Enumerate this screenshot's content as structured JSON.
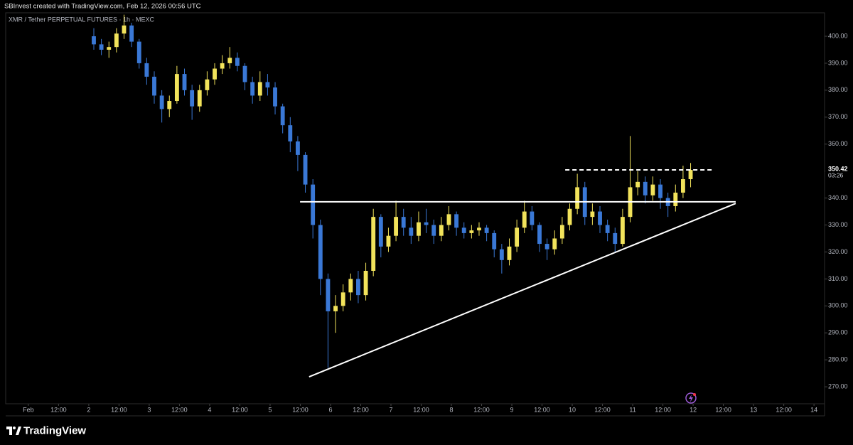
{
  "header": "SBInvest created with TradingView.com, Feb 12, 2026 00:56 UTC",
  "chart_data": {
    "type": "candlestick",
    "title": "XMR / Tether PERPETUAL FUTURES · 1h · MEXC",
    "up_color": "#f2e35b",
    "down_color": "#3a78d6",
    "x": [
      26,
      29,
      32,
      35,
      38,
      41,
      44,
      47,
      50,
      53,
      56,
      59,
      62,
      65,
      68,
      71,
      74,
      77,
      80,
      83,
      86,
      89,
      92,
      95,
      98,
      101,
      104,
      107,
      110,
      113,
      116,
      119,
      122,
      125,
      128,
      131,
      134,
      137,
      140,
      143,
      146,
      149,
      152,
      155,
      158,
      161,
      164,
      167,
      170,
      173,
      176,
      179,
      182,
      185,
      188,
      191,
      194,
      197,
      200,
      203,
      206,
      209,
      212,
      215,
      218,
      221,
      224,
      227,
      230,
      233,
      236,
      239,
      242,
      245,
      248,
      251,
      254,
      257,
      260,
      263
    ],
    "open": [
      400,
      397,
      395,
      396,
      401,
      404,
      398,
      390,
      385,
      378,
      373,
      376,
      386,
      380,
      374,
      380,
      384,
      388,
      390,
      392,
      389,
      383,
      378,
      383,
      381,
      374,
      367,
      361,
      356,
      345,
      330,
      310,
      298,
      300,
      305,
      310,
      304,
      313,
      333,
      322,
      326,
      333,
      329,
      326,
      331,
      330,
      326,
      330,
      334,
      329,
      327,
      328,
      329,
      327,
      321,
      317,
      322,
      329,
      335,
      330,
      323,
      321,
      325,
      330,
      336,
      344,
      333,
      335,
      330,
      327,
      323,
      333,
      344,
      346,
      341,
      345,
      340,
      337,
      342,
      347
    ],
    "high": [
      403,
      399,
      398,
      403,
      408,
      405,
      399,
      392,
      387,
      380,
      378,
      389,
      388,
      382,
      382,
      387,
      390,
      393,
      396,
      394,
      390,
      385,
      387,
      386,
      383,
      375,
      370,
      363,
      357,
      347,
      332,
      312,
      304,
      308,
      312,
      313,
      316,
      336,
      334,
      329,
      339,
      336,
      333,
      335,
      336,
      332,
      333,
      337,
      335,
      331,
      330,
      331,
      330,
      328,
      323,
      325,
      332,
      339,
      337,
      331,
      325,
      328,
      333,
      338,
      349,
      346,
      338,
      337,
      332,
      329,
      336,
      363,
      350,
      348,
      348,
      347,
      342,
      345,
      352,
      353
    ],
    "low": [
      395,
      393,
      392,
      394,
      399,
      396,
      388,
      382,
      375,
      368,
      370,
      375,
      378,
      369,
      372,
      378,
      382,
      386,
      388,
      387,
      380,
      375,
      376,
      378,
      371,
      364,
      357,
      350,
      342,
      325,
      304,
      277,
      290,
      298,
      302,
      301,
      302,
      311,
      318,
      320,
      324,
      326,
      323,
      324,
      327,
      323,
      324,
      328,
      326,
      325,
      325,
      326,
      324,
      318,
      312,
      315,
      320,
      327,
      328,
      320,
      317,
      319,
      323,
      328,
      334,
      330,
      330,
      327,
      324,
      320,
      322,
      331,
      341,
      338,
      339,
      336,
      333,
      335,
      340,
      344
    ],
    "close": [
      397,
      395,
      396,
      401,
      404,
      398,
      390,
      385,
      378,
      373,
      376,
      386,
      380,
      374,
      380,
      384,
      388,
      390,
      392,
      389,
      383,
      378,
      383,
      381,
      374,
      367,
      361,
      356,
      345,
      330,
      310,
      298,
      300,
      305,
      310,
      304,
      313,
      333,
      322,
      326,
      333,
      329,
      326,
      331,
      330,
      326,
      330,
      334,
      329,
      327,
      328,
      329,
      327,
      321,
      317,
      322,
      329,
      335,
      330,
      323,
      321,
      325,
      330,
      336,
      344,
      333,
      335,
      330,
      327,
      323,
      333,
      344,
      346,
      341,
      345,
      340,
      337,
      342,
      347,
      350.42
    ],
    "xlim": [
      -9,
      316.2
    ],
    "ylim": [
      263.7,
      408.7
    ],
    "xticks": [
      {
        "value": 0,
        "label": "Feb"
      },
      {
        "value": 12,
        "label": "12:00"
      },
      {
        "value": 24,
        "label": "2"
      },
      {
        "value": 36,
        "label": "12:00"
      },
      {
        "value": 48,
        "label": "3"
      },
      {
        "value": 60,
        "label": "12:00"
      },
      {
        "value": 72,
        "label": "4"
      },
      {
        "value": 84,
        "label": "12:00"
      },
      {
        "value": 96,
        "label": "5"
      },
      {
        "value": 108,
        "label": "12:00"
      },
      {
        "value": 120,
        "label": "6"
      },
      {
        "value": 132,
        "label": "12:00"
      },
      {
        "value": 144,
        "label": "7"
      },
      {
        "value": 156,
        "label": "12:00"
      },
      {
        "value": 168,
        "label": "8"
      },
      {
        "value": 180,
        "label": "12:00"
      },
      {
        "value": 192,
        "label": "9"
      },
      {
        "value": 204,
        "label": "12:00"
      },
      {
        "value": 216,
        "label": "10"
      },
      {
        "value": 228,
        "label": "12:00"
      },
      {
        "value": 240,
        "label": "11"
      },
      {
        "value": 252,
        "label": "12:00"
      },
      {
        "value": 264,
        "label": "12"
      },
      {
        "value": 276,
        "label": "12:00"
      },
      {
        "value": 288,
        "label": "13"
      },
      {
        "value": 300,
        "label": "12:00"
      },
      {
        "value": 312,
        "label": "14"
      }
    ],
    "yticks": [
      {
        "value": 270,
        "label": "270.00"
      },
      {
        "value": 280,
        "label": "280.00"
      },
      {
        "value": 290,
        "label": "290.00"
      },
      {
        "value": 300,
        "label": "300.00"
      },
      {
        "value": 310,
        "label": "310.00"
      },
      {
        "value": 320,
        "label": "320.00"
      },
      {
        "value": 330,
        "label": "330.00"
      },
      {
        "value": 340,
        "label": "340.00"
      },
      {
        "value": 350,
        "label": "350.00"
      },
      {
        "value": 360,
        "label": "360.00"
      },
      {
        "value": 370,
        "label": "370.00"
      },
      {
        "value": 380,
        "label": "380.00"
      },
      {
        "value": 390,
        "label": "390.00"
      },
      {
        "value": 400,
        "label": "400.00"
      }
    ],
    "drawings": [
      {
        "style": "solid",
        "x": [
          107.9,
          280.9
        ],
        "y": [
          338.6,
          338.6
        ]
      },
      {
        "style": "solid",
        "x": [
          111.5,
          280.9
        ],
        "y": [
          273.7,
          338.0
        ]
      },
      {
        "style": "dashed",
        "x": [
          213.2,
          272.4
        ],
        "y": [
          350.42,
          350.42
        ]
      }
    ],
    "last_price": {
      "value": 350.42,
      "label": "350.42"
    },
    "countdown": "03:26"
  },
  "footer": {
    "brand": "TradingView"
  }
}
